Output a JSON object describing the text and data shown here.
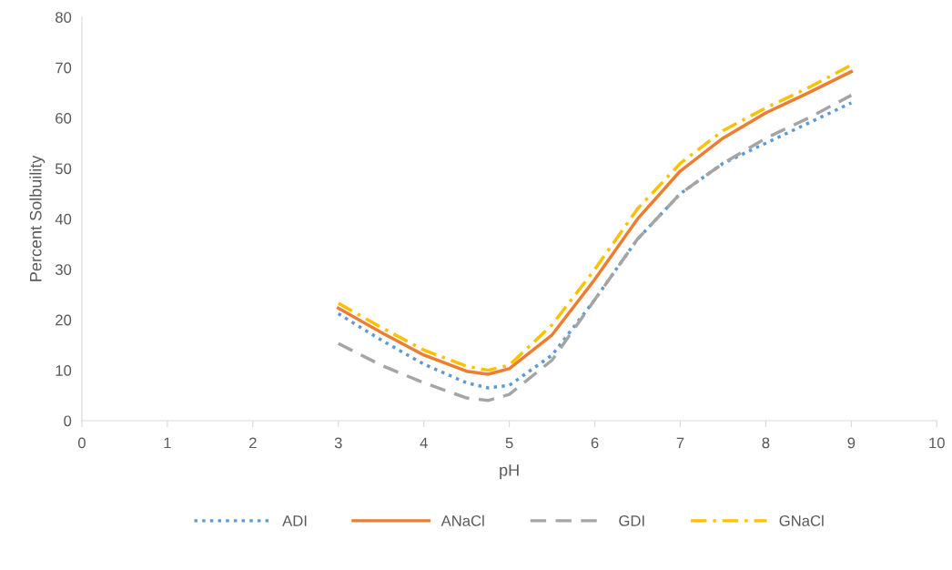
{
  "chart_data": {
    "type": "line",
    "xlabel": "pH",
    "ylabel": "Percent Solbuility",
    "x": [
      3,
      3.5,
      4,
      4.5,
      4.75,
      5,
      5.5,
      6,
      6.5,
      7,
      7.5,
      8,
      8.5,
      9
    ],
    "series": [
      {
        "name": "ADI",
        "color": "#5b9bd5",
        "line_style": "dotted",
        "values": [
          21.2,
          16,
          11.2,
          7.5,
          6.5,
          7,
          13,
          24,
          36,
          45,
          51,
          55,
          59,
          63
        ]
      },
      {
        "name": "ANaCl",
        "color": "#ed7d31",
        "line_style": "solid",
        "values": [
          22.3,
          17.5,
          13,
          9.8,
          9.2,
          10.3,
          17,
          28,
          40,
          49.5,
          56,
          61,
          65,
          69.2
        ]
      },
      {
        "name": "GDI",
        "color": "#a5a5a5",
        "line_style": "dashed",
        "values": [
          15.3,
          11,
          7.5,
          4.5,
          4,
          5.2,
          12,
          24,
          36,
          45,
          51,
          56,
          60,
          64.5
        ]
      },
      {
        "name": "GNaCl",
        "color": "#ffc000",
        "line_style": "dashdot",
        "values": [
          23.3,
          18.5,
          14,
          10.8,
          10,
          11,
          19,
          30,
          42,
          51,
          57.5,
          62,
          66,
          70.5
        ]
      }
    ],
    "xlim": [
      0,
      10
    ],
    "xticks": [
      0,
      1,
      2,
      3,
      4,
      5,
      6,
      7,
      8,
      9,
      10
    ],
    "ylim": [
      0,
      80
    ],
    "yticks": [
      0,
      10,
      20,
      30,
      40,
      50,
      60,
      70,
      80
    ],
    "grid": false,
    "legend": "bottom",
    "marker": "none"
  }
}
